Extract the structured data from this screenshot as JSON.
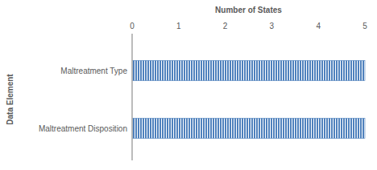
{
  "chart_data": {
    "type": "bar",
    "orientation": "horizontal",
    "x_label": "Number of States",
    "y_label": "Data Element",
    "categories": [
      "Maltreatment Type",
      "Maltreatment Disposition"
    ],
    "values": [
      5,
      5
    ],
    "color": "#4f81bd",
    "xlim": [
      0,
      5
    ],
    "xticks": [
      0,
      1,
      2,
      3,
      4,
      5
    ],
    "grid": false
  }
}
